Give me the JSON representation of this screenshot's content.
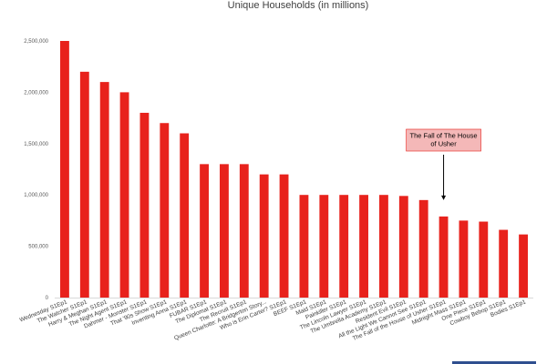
{
  "chart_data": {
    "type": "bar",
    "title": "Unique Households (in millions)",
    "xlabel": "",
    "ylabel": "",
    "ylim": [
      0,
      2500000
    ],
    "yticks": [
      0,
      500000,
      1000000,
      1500000,
      2000000,
      2500000
    ],
    "ytick_labels": [
      "0",
      "500,000",
      "1,000,000",
      "1,500,000",
      "2,000,000",
      "2,500,000"
    ],
    "grid": false,
    "legend": "none",
    "bar_color": "#e8221c",
    "categories": [
      "Wednesday S1Ep1",
      "The Watcher S1Ep1",
      "Harry & Meghan S1Ep1",
      "The Night Agent S1Ep1",
      "Dahmer - Monster S1Ep1",
      "That '90s Show S1Ep1",
      "Inventing Anna S1Ep1",
      "FUBAR S1Ep1",
      "The Diplomat S1Ep1",
      "The Recruit S1Ep1",
      "Queen Charlotte: A Bridgerton Story...",
      "Who is Erin Carter? S1Ep1",
      "BEEF S1Ep1",
      "Maid S1Ep1",
      "Painkiller S1Ep1",
      "The Lincoln Lawyer S1Ep1",
      "The Umbrella Academy S1Ep1",
      "Resident Evil S1Ep1",
      "All the Light We Cannot See S1Ep1",
      "The Fall of the House of Usher S1Ep1",
      "Midnight Mass S1Ep1",
      "One Piece S1Ep1",
      "Cowboy Bebop S1Ep1",
      "Bodies S1Ep1"
    ],
    "values": [
      2500000,
      2200000,
      2100000,
      2000000,
      1800000,
      1700000,
      1600000,
      1300000,
      1300000,
      1300000,
      1200000,
      1200000,
      1000000,
      1000000,
      1000000,
      1000000,
      1000000,
      990000,
      950000,
      790000,
      750000,
      740000,
      660000,
      615000
    ],
    "annotation": {
      "text_lines": [
        "The Fall of The House",
        "of Usher"
      ],
      "category_index": 19,
      "box_color": "#f4b8b8",
      "box_border": "#e8221c"
    }
  }
}
